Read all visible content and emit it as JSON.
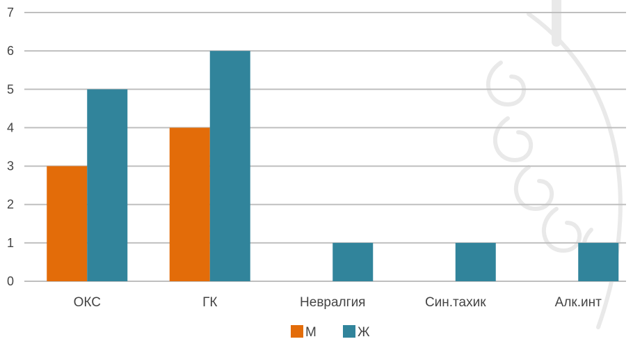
{
  "chart_data": {
    "type": "bar",
    "categories": [
      "ОКС",
      "ГК",
      "Невралгия",
      "Син.тахик",
      "Алк.инт"
    ],
    "series": [
      {
        "name": "М",
        "values": [
          3,
          4,
          0,
          0,
          0
        ],
        "color": "#E36C09"
      },
      {
        "name": "Ж",
        "values": [
          5,
          6,
          1,
          1,
          1
        ],
        "color": "#31849B"
      }
    ],
    "y_ticks": [
      "0",
      "1",
      "2",
      "3",
      "4",
      "5",
      "6",
      "7"
    ],
    "ylim": [
      0,
      7
    ],
    "grid": true,
    "legend_position": "bottom",
    "gridline_color": "#BFBFBF",
    "watermark": "decorative-ornament"
  }
}
